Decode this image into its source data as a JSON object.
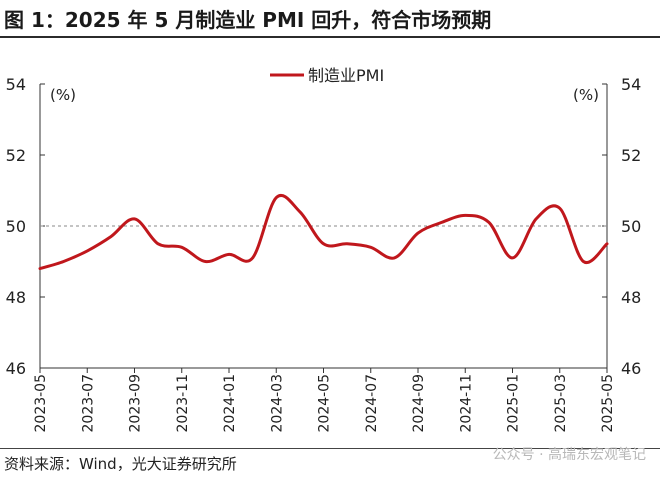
{
  "title": "图 1：2025 年 5 月制造业 PMI 回升，符合市场预期",
  "source": "资料来源：Wind，光大证券研究所",
  "watermark": "公众号 · 高瑞东宏观笔记",
  "chart_data": {
    "type": "line",
    "title": "图 1：2025 年 5 月制造业 PMI 回升，符合市场预期",
    "ylabel_left": "(%)",
    "ylabel_right": "(%)",
    "ylim": [
      46,
      54
    ],
    "yticks": [
      "46",
      "48",
      "50",
      "52",
      "54"
    ],
    "reference_line": 50,
    "legend": "top-center",
    "grid": false,
    "xtick_labels": [
      "2023-05",
      "2023-07",
      "2023-09",
      "2023-11",
      "2024-01",
      "2024-03",
      "2024-05",
      "2024-07",
      "2024-09",
      "2024-11",
      "2025-01",
      "2025-03",
      "2025-05"
    ],
    "x": [
      "2023-05",
      "2023-06",
      "2023-07",
      "2023-08",
      "2023-09",
      "2023-10",
      "2023-11",
      "2023-12",
      "2024-01",
      "2024-02",
      "2024-03",
      "2024-04",
      "2024-05",
      "2024-06",
      "2024-07",
      "2024-08",
      "2024-09",
      "2024-10",
      "2024-11",
      "2024-12",
      "2025-01",
      "2025-02",
      "2025-03",
      "2025-04",
      "2025-05"
    ],
    "series": [
      {
        "name": "制造业PMI",
        "color": "#c0171c",
        "values": [
          48.8,
          49.0,
          49.3,
          49.7,
          50.2,
          49.5,
          49.4,
          49.0,
          49.2,
          49.1,
          50.8,
          50.4,
          49.5,
          49.5,
          49.4,
          49.1,
          49.8,
          50.1,
          50.3,
          50.1,
          49.1,
          50.2,
          50.5,
          49.0,
          49.5
        ]
      }
    ]
  }
}
